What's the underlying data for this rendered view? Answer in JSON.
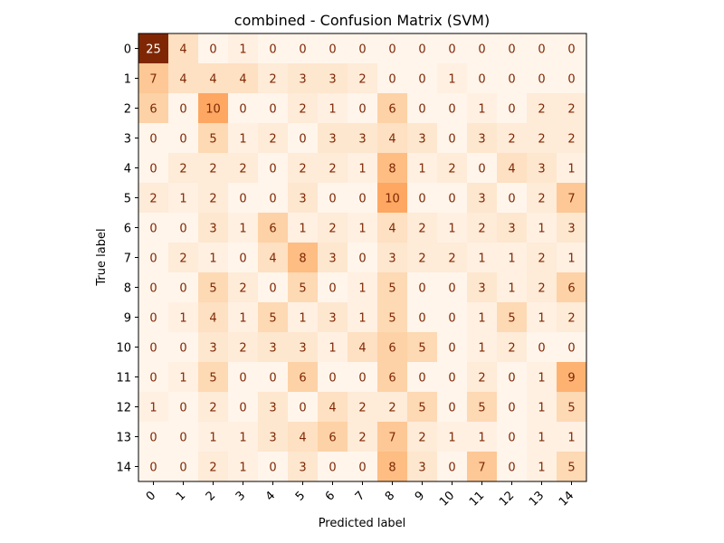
{
  "chart_data": {
    "type": "heatmap",
    "title": "combined - Confusion Matrix (SVM)",
    "xlabel": "Predicted label",
    "ylabel": "True label",
    "x_tick_labels": [
      "0",
      "1",
      "2",
      "3",
      "4",
      "5",
      "6",
      "7",
      "8",
      "9",
      "10",
      "11",
      "12",
      "13",
      "14"
    ],
    "y_tick_labels": [
      "0",
      "1",
      "2",
      "3",
      "4",
      "5",
      "6",
      "7",
      "8",
      "9",
      "10",
      "11",
      "12",
      "13",
      "14"
    ],
    "colormap": "Oranges",
    "value_range": [
      0,
      25
    ],
    "x_tick_rotation_deg": 45,
    "matrix": [
      [
        25,
        4,
        0,
        1,
        0,
        0,
        0,
        0,
        0,
        0,
        0,
        0,
        0,
        0,
        0
      ],
      [
        7,
        4,
        4,
        4,
        2,
        3,
        3,
        2,
        0,
        0,
        1,
        0,
        0,
        0,
        0
      ],
      [
        6,
        0,
        10,
        0,
        0,
        2,
        1,
        0,
        6,
        0,
        0,
        1,
        0,
        2,
        2
      ],
      [
        0,
        0,
        5,
        1,
        2,
        0,
        3,
        3,
        4,
        3,
        0,
        3,
        2,
        2,
        2
      ],
      [
        0,
        2,
        2,
        2,
        0,
        2,
        2,
        1,
        8,
        1,
        2,
        0,
        4,
        3,
        1
      ],
      [
        2,
        1,
        2,
        0,
        0,
        3,
        0,
        0,
        10,
        0,
        0,
        3,
        0,
        2,
        7
      ],
      [
        0,
        0,
        3,
        1,
        6,
        1,
        2,
        1,
        4,
        2,
        1,
        2,
        3,
        1,
        3
      ],
      [
        0,
        2,
        1,
        0,
        4,
        8,
        3,
        0,
        3,
        2,
        2,
        1,
        1,
        2,
        1
      ],
      [
        0,
        0,
        5,
        2,
        0,
        5,
        0,
        1,
        5,
        0,
        0,
        3,
        1,
        2,
        6
      ],
      [
        0,
        1,
        4,
        1,
        5,
        1,
        3,
        1,
        5,
        0,
        0,
        1,
        5,
        1,
        2
      ],
      [
        0,
        0,
        3,
        2,
        3,
        3,
        1,
        4,
        6,
        5,
        0,
        1,
        2,
        0,
        0
      ],
      [
        0,
        1,
        5,
        0,
        0,
        6,
        0,
        0,
        6,
        0,
        0,
        2,
        0,
        1,
        9
      ],
      [
        1,
        0,
        2,
        0,
        3,
        0,
        4,
        2,
        2,
        5,
        0,
        5,
        0,
        1,
        5
      ],
      [
        0,
        0,
        1,
        1,
        3,
        4,
        6,
        2,
        7,
        2,
        1,
        1,
        0,
        1,
        1
      ],
      [
        0,
        0,
        2,
        1,
        0,
        3,
        0,
        0,
        8,
        3,
        0,
        7,
        0,
        1,
        5
      ]
    ]
  }
}
